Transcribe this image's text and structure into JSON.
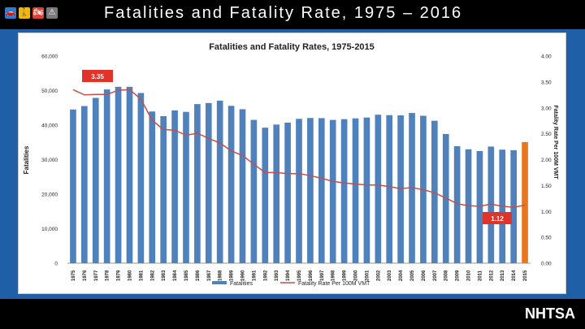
{
  "slide": {
    "title": "Fatalities and Fatality Rate, 1975 – 2016",
    "brand": "NHTSA",
    "icons": [
      {
        "name": "car-icon",
        "color": "#2a7fd4",
        "glyph": "🚗"
      },
      {
        "name": "pedestrian-icon",
        "color": "#f2b705",
        "glyph": "🚶"
      },
      {
        "name": "motorcycle-icon",
        "color": "#e04030",
        "glyph": "🏍"
      },
      {
        "name": "warning-icon",
        "color": "#7a7a7a",
        "glyph": "⚠"
      }
    ]
  },
  "chart_data": {
    "type": "bar",
    "title": "Fatalities and Fatality Rates, 1975-2015",
    "ylabel": "Fatalities",
    "y2label": "Fatality Rate Per 100M VMT",
    "ylim": [
      0,
      60000
    ],
    "y2lim": [
      0,
      4.0
    ],
    "yticks": [
      "0",
      "10,000",
      "20,000",
      "30,000",
      "40,000",
      "50,000",
      "60,000"
    ],
    "y2ticks": [
      "0.00",
      "0.50",
      "1.00",
      "1.50",
      "2.00",
      "2.50",
      "3.00",
      "3.50",
      "4.00"
    ],
    "categories": [
      "1975",
      "1976",
      "1977",
      "1978",
      "1979",
      "1980",
      "1981",
      "1982",
      "1983",
      "1984",
      "1985",
      "1986",
      "1987",
      "1988",
      "1989",
      "1990",
      "1991",
      "1992",
      "1993",
      "1994",
      "1995",
      "1996",
      "1997",
      "1998",
      "1999",
      "2000",
      "2001",
      "2002",
      "2003",
      "2004",
      "2005",
      "2006",
      "2007",
      "2008",
      "2009",
      "2010",
      "2011",
      "2012",
      "2013",
      "2014",
      "2015"
    ],
    "series": [
      {
        "name": "Fatalities",
        "kind": "bar",
        "color": "#4f81bd",
        "values": [
          44525,
          45523,
          47878,
          50331,
          51093,
          51091,
          49301,
          43945,
          42589,
          44257,
          43825,
          46087,
          46390,
          47087,
          45582,
          44599,
          41508,
          39250,
          40150,
          40716,
          41817,
          42065,
          42013,
          41501,
          41717,
          41945,
          42196,
          43005,
          42884,
          42836,
          43510,
          42708,
          41259,
          37423,
          33883,
          32999,
          32479,
          33782,
          32893,
          32744,
          35092
        ]
      },
      {
        "name": "Fatality Rate Per 100M VMT",
        "kind": "line",
        "axis": "right",
        "color": "#c0504d",
        "values": [
          3.35,
          3.25,
          3.26,
          3.26,
          3.34,
          3.35,
          3.17,
          2.76,
          2.58,
          2.57,
          2.47,
          2.51,
          2.41,
          2.32,
          2.17,
          2.08,
          1.91,
          1.75,
          1.75,
          1.73,
          1.73,
          1.69,
          1.64,
          1.58,
          1.55,
          1.53,
          1.51,
          1.51,
          1.48,
          1.44,
          1.46,
          1.42,
          1.36,
          1.26,
          1.15,
          1.11,
          1.1,
          1.14,
          1.1,
          1.08,
          1.12
        ]
      }
    ],
    "highlight": {
      "index": 40,
      "color": "#e8761c"
    },
    "annotations": [
      {
        "text": "3.35",
        "color": "#e0342a"
      },
      {
        "text": "1.12",
        "color": "#e0342a"
      }
    ],
    "legend": "bottom-center"
  }
}
